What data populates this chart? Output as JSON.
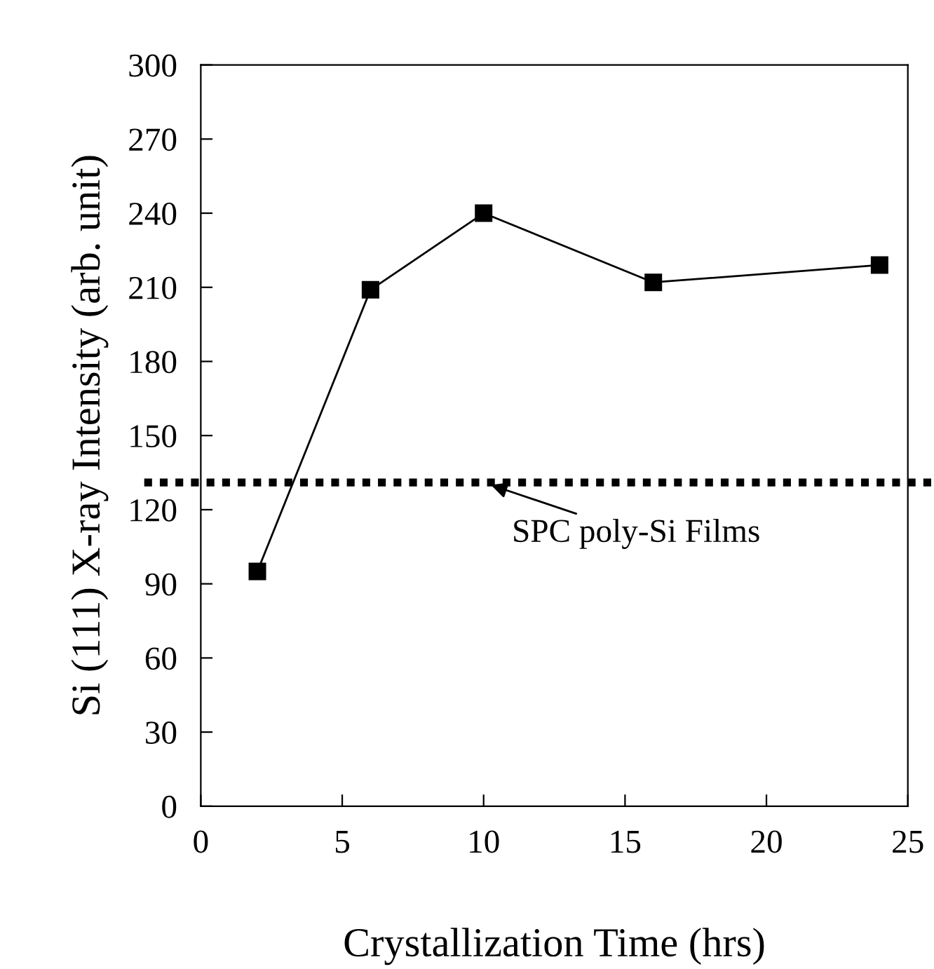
{
  "chart_data": {
    "type": "line",
    "xlabel": "Crystallization Time (hrs)",
    "ylabel": "Si (111) X-ray Intensity (arb. unit)",
    "x": [
      2,
      6,
      10,
      16,
      24
    ],
    "series": [
      {
        "color": "#000000",
        "values": [
          95,
          209,
          240,
          212,
          219
        ]
      }
    ],
    "marker": "square",
    "line_style": "solid",
    "grid": false,
    "legend": false,
    "xlim": [
      0,
      25
    ],
    "xticks": [
      0,
      5,
      10,
      15,
      20,
      25
    ],
    "ylim": [
      0,
      300
    ],
    "yticks": [
      0,
      30,
      60,
      90,
      120,
      150,
      180,
      210,
      240,
      270,
      300
    ],
    "ref_lines": [
      {
        "axis": "y",
        "value": 131,
        "color": "#000000",
        "line_style": "dotted"
      }
    ],
    "annotations": [
      {
        "text": "SPC poly-Si Films",
        "x": 10,
        "y": 131
      }
    ]
  }
}
